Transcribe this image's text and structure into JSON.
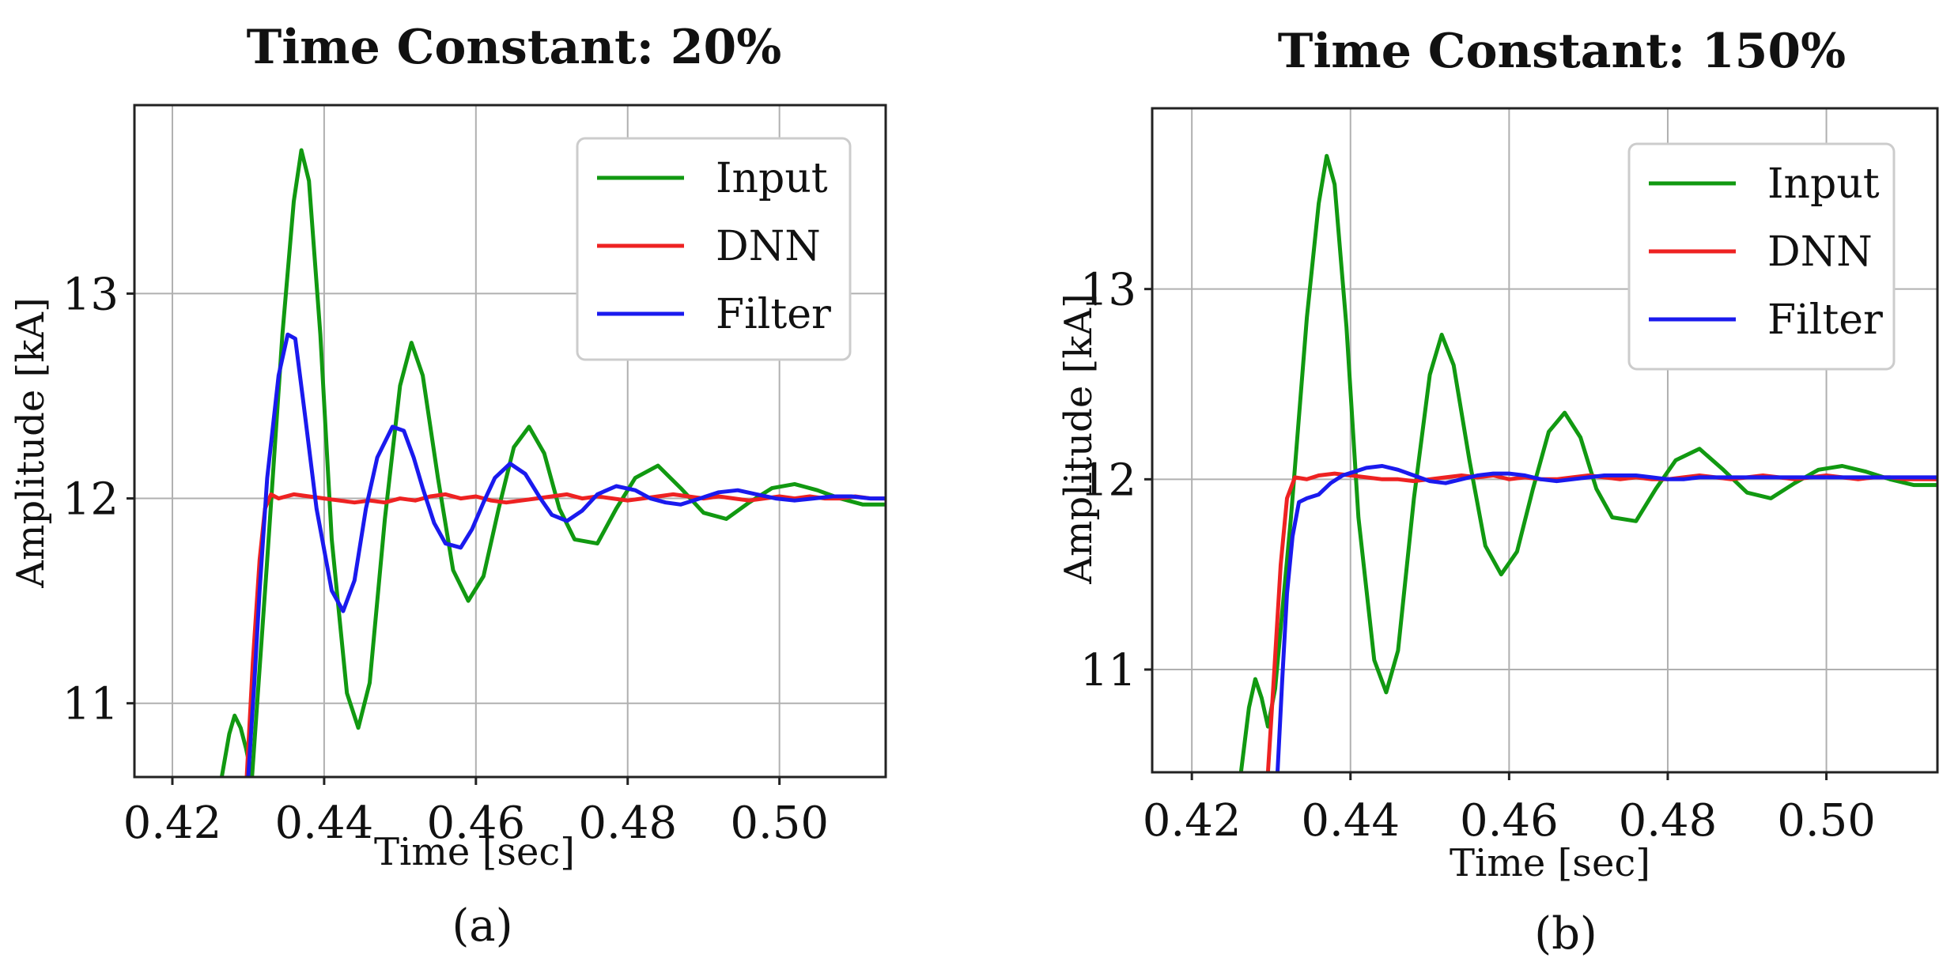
{
  "chart_data": [
    {
      "type": "line",
      "title": "Time Constant: 20%",
      "caption": "(a)",
      "xlabel": "Time [sec]",
      "ylabel": "Amplitude [kA]",
      "xlim": [
        0.415,
        0.514
      ],
      "ylim": [
        10.64,
        13.92
      ],
      "xticks": [
        0.42,
        0.44,
        0.46,
        0.48,
        0.5
      ],
      "xtick_labels": [
        "0.42",
        "0.44",
        "0.46",
        "0.48",
        "0.50"
      ],
      "yticks": [
        11,
        12,
        13
      ],
      "ytick_labels": [
        "11",
        "12",
        "13"
      ],
      "grid": true,
      "legend_position": "top-right",
      "series": [
        {
          "name": "Input",
          "color": "#119911",
          "x": [
            0.4265,
            0.4275,
            0.4282,
            0.429,
            0.4297,
            0.4305,
            0.4325,
            0.4345,
            0.436,
            0.437,
            0.438,
            0.4395,
            0.441,
            0.443,
            0.4445,
            0.446,
            0.448,
            0.45,
            0.4515,
            0.453,
            0.455,
            0.457,
            0.459,
            0.461,
            0.463,
            0.465,
            0.467,
            0.469,
            0.471,
            0.473,
            0.476,
            0.4785,
            0.481,
            0.484,
            0.487,
            0.49,
            0.493,
            0.496,
            0.499,
            0.502,
            0.505,
            0.508,
            0.511,
            0.514
          ],
          "y": [
            10.64,
            10.85,
            10.94,
            10.88,
            10.78,
            10.64,
            11.7,
            12.8,
            13.45,
            13.7,
            13.55,
            12.8,
            11.8,
            11.05,
            10.88,
            11.1,
            11.9,
            12.55,
            12.76,
            12.6,
            12.1,
            11.65,
            11.5,
            11.62,
            11.95,
            12.25,
            12.35,
            12.22,
            11.95,
            11.8,
            11.78,
            11.95,
            12.1,
            12.16,
            12.05,
            11.93,
            11.9,
            11.98,
            12.05,
            12.07,
            12.04,
            12.0,
            11.97,
            11.97
          ]
        },
        {
          "name": "DNN",
          "color": "#ee2222",
          "x": [
            0.4298,
            0.4306,
            0.4315,
            0.4322,
            0.433,
            0.434,
            0.436,
            0.438,
            0.44,
            0.442,
            0.444,
            0.446,
            0.448,
            0.45,
            0.452,
            0.454,
            0.456,
            0.458,
            0.46,
            0.462,
            0.464,
            0.466,
            0.468,
            0.47,
            0.472,
            0.474,
            0.476,
            0.478,
            0.48,
            0.482,
            0.484,
            0.486,
            0.488,
            0.49,
            0.492,
            0.494,
            0.496,
            0.498,
            0.5,
            0.502,
            0.504,
            0.506,
            0.508,
            0.51,
            0.512,
            0.514
          ],
          "y": [
            10.64,
            11.2,
            11.7,
            11.95,
            12.02,
            12.0,
            12.02,
            12.01,
            12.0,
            11.99,
            11.98,
            11.99,
            11.98,
            12.0,
            11.99,
            12.01,
            12.02,
            12.0,
            12.01,
            11.99,
            11.98,
            11.99,
            12.0,
            12.01,
            12.02,
            12.0,
            12.01,
            12.0,
            11.99,
            12.0,
            12.01,
            12.02,
            12.01,
            12.0,
            12.01,
            12.0,
            11.99,
            12.0,
            12.01,
            12.0,
            12.01,
            12.0,
            12.0,
            12.01,
            12.0,
            12.0
          ]
        },
        {
          "name": "Filter",
          "color": "#1a1aee",
          "x": [
            0.43,
            0.4308,
            0.4315,
            0.4325,
            0.434,
            0.4352,
            0.4362,
            0.4375,
            0.439,
            0.441,
            0.4425,
            0.444,
            0.4455,
            0.447,
            0.449,
            0.4505,
            0.4518,
            0.453,
            0.4545,
            0.456,
            0.458,
            0.4595,
            0.461,
            0.4625,
            0.4645,
            0.4665,
            0.4685,
            0.47,
            0.472,
            0.474,
            0.476,
            0.4785,
            0.481,
            0.483,
            0.485,
            0.487,
            0.4895,
            0.492,
            0.4945,
            0.497,
            0.4995,
            0.502,
            0.5045,
            0.507,
            0.5095,
            0.512,
            0.514
          ],
          "y": [
            10.64,
            11.1,
            11.55,
            12.1,
            12.6,
            12.8,
            12.78,
            12.4,
            11.95,
            11.55,
            11.45,
            11.6,
            11.95,
            12.2,
            12.35,
            12.33,
            12.2,
            12.05,
            11.88,
            11.78,
            11.76,
            11.85,
            11.98,
            12.1,
            12.17,
            12.12,
            12.0,
            11.92,
            11.89,
            11.94,
            12.02,
            12.06,
            12.04,
            12.0,
            11.98,
            11.97,
            12.0,
            12.03,
            12.04,
            12.02,
            12.0,
            11.99,
            12.0,
            12.01,
            12.01,
            12.0,
            12.0
          ]
        }
      ]
    },
    {
      "type": "line",
      "title": "Time Constant: 150%",
      "caption": "(b)",
      "xlabel": "Time [sec]",
      "ylabel": "Amplitude [kA]",
      "xlim": [
        0.415,
        0.514
      ],
      "ylim": [
        10.46,
        13.95
      ],
      "xticks": [
        0.42,
        0.44,
        0.46,
        0.48,
        0.5
      ],
      "xtick_labels": [
        "0.42",
        "0.44",
        "0.46",
        "0.48",
        "0.50"
      ],
      "yticks": [
        11,
        12,
        13
      ],
      "ytick_labels": [
        "11",
        "12",
        "13"
      ],
      "grid": true,
      "legend_position": "top-right",
      "series": [
        {
          "name": "Input",
          "color": "#119911",
          "x": [
            0.4262,
            0.4272,
            0.428,
            0.4288,
            0.4296,
            0.4305,
            0.4325,
            0.4345,
            0.436,
            0.437,
            0.438,
            0.4395,
            0.441,
            0.443,
            0.4445,
            0.446,
            0.448,
            0.45,
            0.4515,
            0.453,
            0.455,
            0.457,
            0.459,
            0.461,
            0.463,
            0.465,
            0.467,
            0.469,
            0.471,
            0.473,
            0.476,
            0.4785,
            0.481,
            0.484,
            0.487,
            0.49,
            0.493,
            0.496,
            0.499,
            0.502,
            0.505,
            0.508,
            0.511,
            0.514
          ],
          "y": [
            10.46,
            10.8,
            10.95,
            10.85,
            10.7,
            10.9,
            11.8,
            12.85,
            13.45,
            13.7,
            13.55,
            12.8,
            11.8,
            11.05,
            10.88,
            11.1,
            11.9,
            12.55,
            12.76,
            12.6,
            12.1,
            11.65,
            11.5,
            11.62,
            11.95,
            12.25,
            12.35,
            12.22,
            11.95,
            11.8,
            11.78,
            11.95,
            12.1,
            12.16,
            12.05,
            11.93,
            11.9,
            11.98,
            12.05,
            12.07,
            12.04,
            12.0,
            11.97,
            11.97
          ]
        },
        {
          "name": "DNN",
          "color": "#ee2222",
          "x": [
            0.4296,
            0.4304,
            0.4312,
            0.432,
            0.433,
            0.4345,
            0.436,
            0.438,
            0.44,
            0.442,
            0.444,
            0.446,
            0.448,
            0.45,
            0.452,
            0.454,
            0.456,
            0.458,
            0.46,
            0.462,
            0.464,
            0.466,
            0.468,
            0.47,
            0.472,
            0.474,
            0.476,
            0.478,
            0.48,
            0.482,
            0.484,
            0.486,
            0.488,
            0.49,
            0.492,
            0.494,
            0.496,
            0.498,
            0.5,
            0.502,
            0.504,
            0.506,
            0.508,
            0.51,
            0.512,
            0.514
          ],
          "y": [
            10.46,
            11.0,
            11.55,
            11.9,
            12.01,
            12.0,
            12.02,
            12.03,
            12.02,
            12.01,
            12.0,
            12.0,
            11.99,
            12.0,
            12.01,
            12.02,
            12.01,
            12.02,
            12.0,
            12.01,
            12.0,
            12.0,
            12.01,
            12.02,
            12.01,
            12.0,
            12.01,
            12.0,
            12.0,
            12.01,
            12.02,
            12.01,
            12.0,
            12.01,
            12.02,
            12.01,
            12.0,
            12.01,
            12.02,
            12.01,
            12.0,
            12.01,
            12.01,
            12.0,
            12.0,
            12.0
          ]
        },
        {
          "name": "Filter",
          "color": "#1a1aee",
          "x": [
            0.4308,
            0.4314,
            0.432,
            0.4327,
            0.4335,
            0.4345,
            0.436,
            0.4375,
            0.439,
            0.4405,
            0.442,
            0.444,
            0.446,
            0.448,
            0.45,
            0.452,
            0.454,
            0.456,
            0.458,
            0.46,
            0.462,
            0.464,
            0.466,
            0.468,
            0.47,
            0.472,
            0.474,
            0.476,
            0.478,
            0.48,
            0.482,
            0.484,
            0.486,
            0.488,
            0.49,
            0.492,
            0.494,
            0.496,
            0.498,
            0.5,
            0.502,
            0.504,
            0.506,
            0.508,
            0.51,
            0.512,
            0.514
          ],
          "y": [
            10.46,
            10.95,
            11.4,
            11.7,
            11.88,
            11.9,
            11.92,
            11.98,
            12.02,
            12.04,
            12.06,
            12.07,
            12.05,
            12.02,
            11.99,
            11.98,
            12.0,
            12.02,
            12.03,
            12.03,
            12.02,
            12.0,
            11.99,
            12.0,
            12.01,
            12.02,
            12.02,
            12.02,
            12.01,
            12.0,
            12.0,
            12.01,
            12.01,
            12.01,
            12.01,
            12.01,
            12.01,
            12.01,
            12.01,
            12.01,
            12.01,
            12.01,
            12.01,
            12.01,
            12.01,
            12.01,
            12.01
          ]
        }
      ]
    }
  ]
}
